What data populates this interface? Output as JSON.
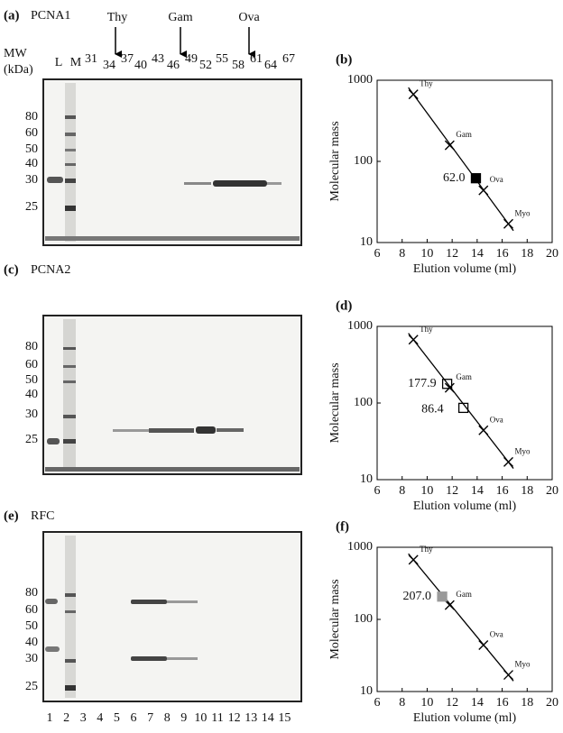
{
  "header": {
    "mw": "MW",
    "unit": "(kDa)"
  },
  "gels": [
    {
      "label": "(a)",
      "title": "PCNA1",
      "lanes": [
        "L",
        "M",
        "31",
        "34",
        "37",
        "40",
        "43",
        "46",
        "49",
        "52",
        "55",
        "58",
        "61",
        "64",
        "67"
      ],
      "markers": [
        "Thy",
        "Gam",
        "Ova"
      ],
      "mw_labels": [
        "80",
        "60",
        "50",
        "40",
        "30",
        "25"
      ]
    },
    {
      "label": "(c)",
      "title": "PCNA2",
      "mw_labels": [
        "80",
        "60",
        "50",
        "40",
        "30",
        "25"
      ]
    },
    {
      "label": "(e)",
      "title": "RFC",
      "mw_labels": [
        "80",
        "60",
        "50",
        "40",
        "30",
        "25"
      ],
      "lanes": [
        "1",
        "2",
        "3",
        "4",
        "5",
        "6",
        "7",
        "8",
        "9",
        "10",
        "11",
        "12",
        "13",
        "14",
        "15"
      ]
    }
  ],
  "chart_data": [
    {
      "type": "scatter",
      "label": "(b)",
      "xlabel": "Elution volume (ml)",
      "ylabel": "Molecular mass",
      "xlim": [
        6,
        20
      ],
      "xticks": [
        6,
        8,
        10,
        12,
        14,
        16,
        18,
        20
      ],
      "ylim": [
        10,
        1000
      ],
      "yticks": [
        10,
        100,
        1000
      ],
      "log_y": true,
      "series": [
        {
          "marker": "x",
          "color": "#000000",
          "x": [
            8.9,
            11.8,
            14.5,
            16.5
          ],
          "values": [
            670,
            158,
            44,
            17
          ],
          "point_labels": [
            "Thy",
            "Gam",
            "Ova",
            "Myo"
          ]
        },
        {
          "marker": "square",
          "color": "#000000",
          "fill": "#000000",
          "x": [
            13.9
          ],
          "values": [
            62.0
          ],
          "value_labels": [
            "62.0"
          ]
        }
      ]
    },
    {
      "type": "scatter",
      "label": "(d)",
      "xlabel": "Elution volume (ml)",
      "ylabel": "Molecular mass",
      "xlim": [
        6,
        20
      ],
      "xticks": [
        6,
        8,
        10,
        12,
        14,
        16,
        18,
        20
      ],
      "ylim": [
        10,
        1000
      ],
      "yticks": [
        10,
        100,
        1000
      ],
      "log_y": true,
      "series": [
        {
          "marker": "x",
          "color": "#000000",
          "x": [
            8.9,
            11.8,
            14.5,
            16.5
          ],
          "values": [
            670,
            158,
            44,
            17
          ],
          "point_labels": [
            "Thy",
            "Gam",
            "Ova",
            "Myo"
          ]
        },
        {
          "marker": "square",
          "color": "#000000",
          "fill": "none",
          "x": [
            11.6,
            12.9
          ],
          "values": [
            177.9,
            86.4
          ],
          "value_labels": [
            "177.9",
            "86.4"
          ]
        }
      ]
    },
    {
      "type": "scatter",
      "label": "(f)",
      "xlabel": "Elution volume (ml)",
      "ylabel": "Molecular mass",
      "xlim": [
        6,
        20
      ],
      "xticks": [
        6,
        8,
        10,
        12,
        14,
        16,
        18,
        20
      ],
      "ylim": [
        10,
        1000
      ],
      "yticks": [
        10,
        100,
        1000
      ],
      "log_y": true,
      "series": [
        {
          "marker": "x",
          "color": "#000000",
          "x": [
            8.9,
            11.8,
            14.5,
            16.5
          ],
          "values": [
            670,
            158,
            44,
            17
          ],
          "point_labels": [
            "Thy",
            "Gam",
            "Ova",
            "Myo"
          ]
        },
        {
          "marker": "square",
          "color": "#9a9a9a",
          "fill": "#9a9a9a",
          "x": [
            11.2
          ],
          "values": [
            207.0
          ],
          "value_labels": [
            "207.0"
          ]
        }
      ]
    }
  ]
}
